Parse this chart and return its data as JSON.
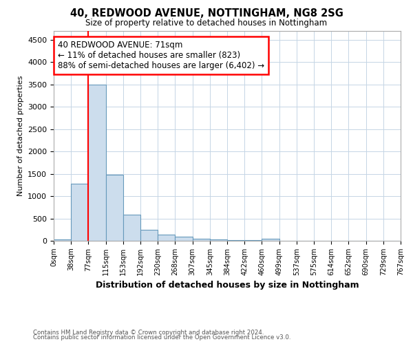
{
  "title": "40, REDWOOD AVENUE, NOTTINGHAM, NG8 2SG",
  "subtitle": "Size of property relative to detached houses in Nottingham",
  "xlabel": "Distribution of detached houses by size in Nottingham",
  "ylabel": "Number of detached properties",
  "footnote1": "Contains HM Land Registry data © Crown copyright and database right 2024.",
  "footnote2": "Contains public sector information licensed under the Open Government Licence v3.0.",
  "bin_labels": [
    "0sqm",
    "38sqm",
    "77sqm",
    "115sqm",
    "153sqm",
    "192sqm",
    "230sqm",
    "268sqm",
    "307sqm",
    "345sqm",
    "384sqm",
    "422sqm",
    "460sqm",
    "499sqm",
    "537sqm",
    "575sqm",
    "614sqm",
    "652sqm",
    "690sqm",
    "729sqm",
    "767sqm"
  ],
  "bar_values": [
    30,
    1280,
    3500,
    1480,
    580,
    250,
    145,
    85,
    50,
    30,
    20,
    10,
    50,
    0,
    0,
    0,
    0,
    0,
    0,
    0
  ],
  "bar_color": "#ccdded",
  "bar_edge_color": "#6699bb",
  "property_line_x": 2.0,
  "annotation_text": "40 REDWOOD AVENUE: 71sqm\n← 11% of detached houses are smaller (823)\n88% of semi-detached houses are larger (6,402) →",
  "annotation_box_color": "white",
  "annotation_box_edge": "red",
  "vline_color": "red",
  "ylim": [
    0,
    4700
  ],
  "yticks": [
    0,
    500,
    1000,
    1500,
    2000,
    2500,
    3000,
    3500,
    4000,
    4500
  ],
  "background_color": "white",
  "grid_color": "#c5d5e5"
}
